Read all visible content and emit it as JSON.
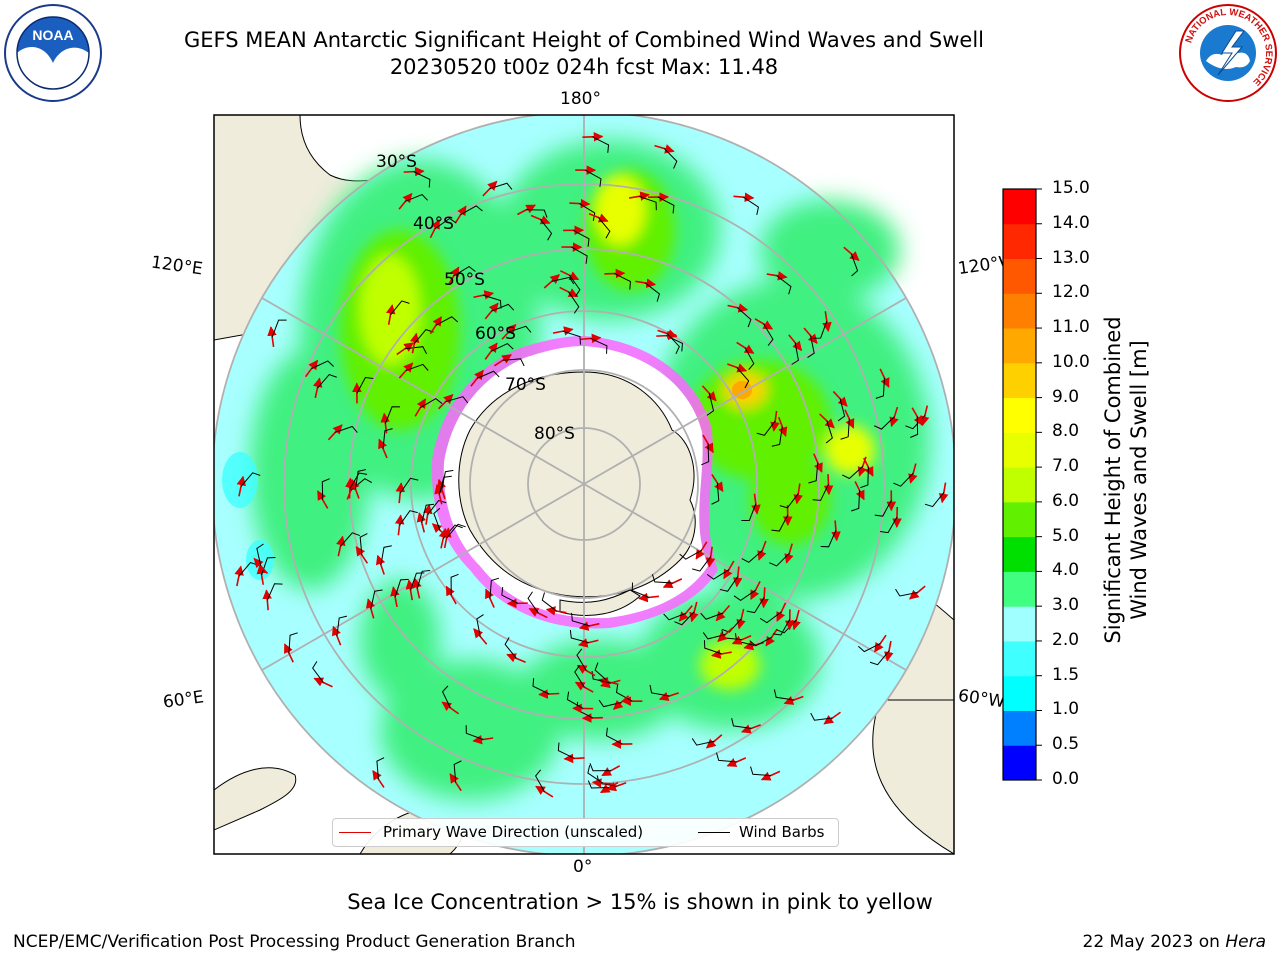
{
  "title": {
    "line1": "GEFS MEAN Antarctic Significant Height of Combined Wind Waves and Swell",
    "line2": "20230520 t00z 024h fcst   Max: 11.48"
  },
  "map": {
    "projection": "south-polar-stereographic",
    "lon_labels": {
      "top": "180°",
      "bottom": "0°",
      "upper_left": "120°E",
      "upper_right": "120°W",
      "lower_left": "60°E",
      "lower_right": "60°W"
    },
    "lat_labels": [
      "30°S",
      "40°S",
      "50°S",
      "60°S",
      "70°S",
      "80°S"
    ]
  },
  "colorbar": {
    "label_line1": "Significant Height of Combined",
    "label_line2": "Wind Waves and Swell [m]",
    "ticks": [
      "0.0",
      "0.5",
      "1.0",
      "1.5",
      "2.0",
      "3.0",
      "4.0",
      "5.0",
      "6.0",
      "7.0",
      "8.0",
      "9.0",
      "10.0",
      "11.0",
      "12.0",
      "13.0",
      "14.0",
      "15.0"
    ],
    "colors": [
      "#0000ff",
      "#0080ff",
      "#00ffff",
      "#40ffff",
      "#a0ffff",
      "#40ff80",
      "#00e000",
      "#60f000",
      "#c0ff00",
      "#e8ff00",
      "#ffff00",
      "#ffd000",
      "#ffa800",
      "#ff8000",
      "#ff5800",
      "#ff2800",
      "#ff0000"
    ]
  },
  "legend": {
    "wave_direction": "Primary Wave Direction (unscaled)",
    "wind_barbs": "Wind Barbs"
  },
  "footer": {
    "sea_ice_note": "Sea Ice Concentration > 15% is shown in pink to yellow",
    "credit": "NCEP/EMC/Verification Post Processing Product Generation Branch",
    "date": "22 May 2023 on ",
    "machine": "Hera"
  },
  "logos": {
    "noaa": "NOAA",
    "nws_ring": "NATIONAL WEATHER SERVICE"
  }
}
